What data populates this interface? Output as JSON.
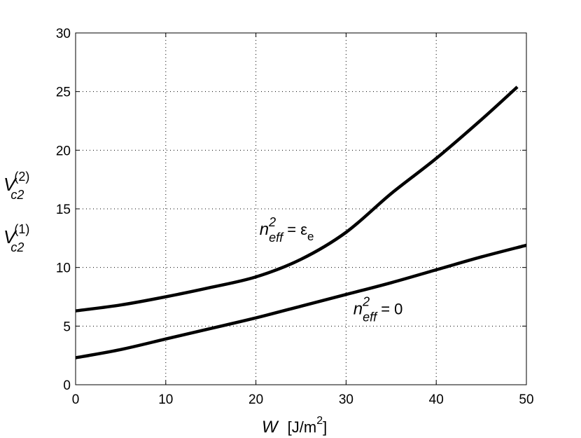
{
  "chart_data": {
    "type": "line",
    "xlabel": {
      "var": "W",
      "unit": "[J/m",
      "unit_sup": "2",
      "unit_close": "]"
    },
    "ylabel": {
      "top": {
        "base": "V",
        "sup": "(2)",
        "sub": "c2"
      },
      "bottom": {
        "base": "V",
        "sup": "(1)",
        "sub": "c2"
      }
    },
    "xlim": [
      0,
      50
    ],
    "ylim": [
      0,
      30
    ],
    "xticks": [
      0,
      10,
      20,
      30,
      40,
      50
    ],
    "yticks": [
      0,
      5,
      10,
      15,
      20,
      25,
      30
    ],
    "grid": true,
    "series": [
      {
        "x": [
          0,
          5,
          10,
          15,
          20,
          25,
          30,
          35,
          40,
          45,
          49
        ],
        "values": [
          6.3,
          6.8,
          7.5,
          8.3,
          9.2,
          10.7,
          13.0,
          16.3,
          19.3,
          22.6,
          25.4
        ],
        "annotation": {
          "base": "n",
          "sup": "2",
          "sub": "eff",
          "rhs": " = ε",
          "rhs_sub": "e",
          "at": [
            20.4,
            12.8
          ]
        }
      },
      {
        "x": [
          0,
          5,
          10,
          15,
          20,
          25,
          30,
          35,
          40,
          45,
          50
        ],
        "values": [
          2.3,
          3.0,
          3.9,
          4.8,
          5.7,
          6.7,
          7.7,
          8.7,
          9.8,
          10.9,
          11.9
        ],
        "annotation": {
          "base": "n",
          "sup": "2",
          "sub": "eff",
          "rhs": " = 0",
          "at": [
            30.8,
            6.0
          ]
        }
      }
    ]
  }
}
